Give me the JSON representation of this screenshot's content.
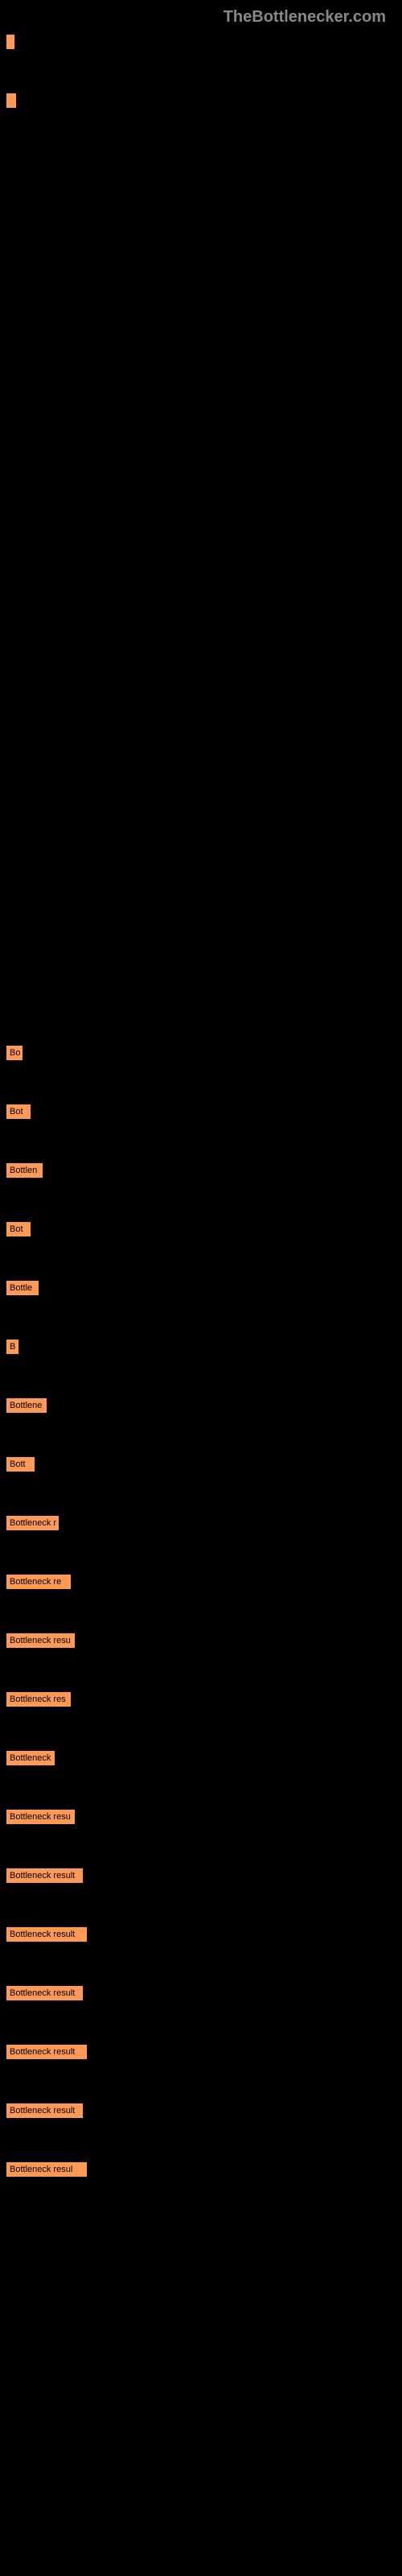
{
  "watermark": "TheBottlenecker.com",
  "bars": [
    {
      "width": 10,
      "label": ""
    },
    {
      "width": 12,
      "label": ""
    }
  ],
  "chart_bars": [
    {
      "width": 20,
      "label": "Bo"
    },
    {
      "width": 30,
      "label": "Bot"
    },
    {
      "width": 45,
      "label": "Bottlen"
    },
    {
      "width": 30,
      "label": "Bot"
    },
    {
      "width": 40,
      "label": "Bottle"
    },
    {
      "width": 15,
      "label": "B"
    },
    {
      "width": 50,
      "label": "Bottlene"
    },
    {
      "width": 35,
      "label": "Bott"
    },
    {
      "width": 65,
      "label": "Bottleneck r"
    },
    {
      "width": 80,
      "label": "Bottleneck re"
    },
    {
      "width": 85,
      "label": "Bottleneck resu"
    },
    {
      "width": 80,
      "label": "Bottleneck res"
    },
    {
      "width": 60,
      "label": "Bottleneck"
    },
    {
      "width": 85,
      "label": "Bottleneck resu"
    },
    {
      "width": 95,
      "label": "Bottleneck result"
    },
    {
      "width": 100,
      "label": "Bottleneck result"
    },
    {
      "width": 95,
      "label": "Bottleneck result"
    },
    {
      "width": 100,
      "label": "Bottleneck result"
    },
    {
      "width": 95,
      "label": "Bottleneck result"
    },
    {
      "width": 100,
      "label": "Bottleneck resul"
    }
  ],
  "style": {
    "background_color": "#000000",
    "bar_color": "#ff9955",
    "watermark_color": "#888888",
    "bar_text_color": "#000000",
    "bar_fontsize": 11,
    "watermark_fontsize": 20
  }
}
